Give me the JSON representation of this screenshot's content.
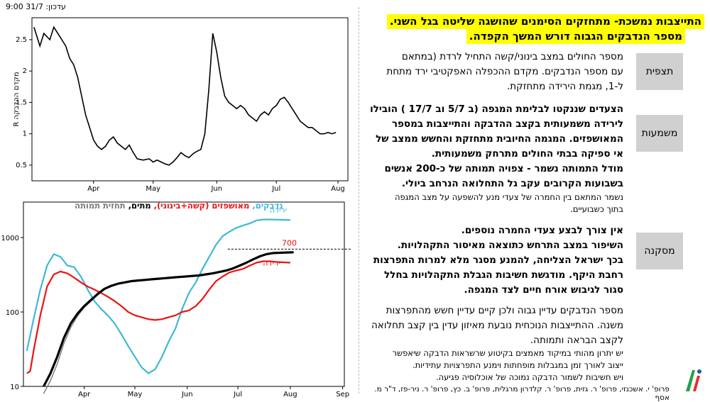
{
  "update_label": "עדכון: 31/7 9:00",
  "headline": {
    "line1": "התייצבות נמשכת- מתחזקים הסימנים שהושגה שליטה בגל השני.",
    "line2": "מספר הנדבקים הגבוה דורש המשך הקפדה."
  },
  "sections": {
    "forecast": {
      "tag": "תצפית",
      "lines": [
        "מספר החולים במצב בינוני/קשה התחיל לרדת (במתאם",
        "עם מספר הנדבקים. מקדם ההכפלה האפקטיבי ירד מתחת",
        "ל-1, מגמת הירידה מתחזקת."
      ]
    },
    "meaning": {
      "tag": "משמעות",
      "lines": [
        "הצעדים שננקטו לבלימת המגפה (ב 5/7 וב 17/7 ) הובילו",
        "לירידה משמעותית בקצב ההדבקה והתייצבות במספר",
        "המאושפזים. המגמה החיובית מתחזקת והחשש ממצב של",
        "אי ספיקה בבתי החולים מתרחק משמעותית.",
        "מודל התמותה נשמר - צפויה תמותה של כ-200 אנשים",
        "בשבועות הקרובים עקב גל התחלואה הנרחב ביולי."
      ],
      "note_lines": [
        "נשמר המתאם בין החמרה של צעדי מנע להשפעה על מצב המגפה",
        "בתוך כשבועיים."
      ]
    },
    "conclusion": {
      "tag": "מסקנה",
      "lines": [
        "אין צורך לבצע צעדי החמרה נוספים.",
        "השיפור במצב התרחש כתוצאה מאיסור התקהלויות.",
        "בכך ישראל הצליחה, להמנע מסגר מלא למרות התפרצות",
        "רחבת היקף. מודגשת חשיבות הגבלת התקהלויות בחלל",
        "סגור לגיבוש אורח חיים לצד המגפה."
      ]
    },
    "extra": {
      "lines": [
        "מספר הנדבקים עדיין גבוה ולכן קיים עדיין חשש מהתפרצות",
        "משנה. ההתייצבות הנוכחית נובעת מאיזון עדין בין קצב תחלואה",
        "לקצב הבראה ותמותה."
      ],
      "note_lines": [
        "יש יתרון מהותי במיקוד מאמצים בקיטוע שרשראות הדבקה שיאפשר",
        "ייצוב לאורך זמן במגבלות מופחתות וימנע התפרצויות עתידיות.",
        "ויש חשיבות לשמור הדבקה נמוכה של אוכלוסיה פגיעה."
      ]
    }
  },
  "footer": "פרופ' י. אשכנזי, פרופ' ר. גזית, פרופ' ר. קלדרון מרגלית, פרופ' ב. כץ, פרופ' ר. ניר-פז, ד\"ר מ. אסף",
  "colors": {
    "highlight": "#ffff00",
    "infected": "#3fb8d8",
    "hospitalized": "#ee1111",
    "deaths": "#000000",
    "mortality_forecast": "#7a7a7a",
    "tag_bg": "#d0d0d0"
  },
  "chart_data": [
    {
      "type": "line",
      "ylabel": "מקדם ההדבקה R",
      "ylim": [
        0.25,
        2.85
      ],
      "yticks": [
        0.5,
        1,
        1.5,
        2,
        2.5
      ],
      "xtick_labels": [
        "Apr",
        "May",
        "Jun",
        "Jul",
        "Aug"
      ],
      "grid": false,
      "series": [
        {
          "x": [
            0,
            3,
            5,
            8,
            10,
            12,
            14,
            16,
            18,
            20,
            22,
            24,
            26,
            28,
            30,
            32,
            34,
            36,
            38,
            40,
            42,
            44,
            46,
            48,
            50,
            52,
            55,
            58,
            60,
            62,
            64,
            66,
            68,
            70,
            72,
            74,
            76,
            78,
            80,
            82,
            84,
            86,
            88,
            90,
            92,
            94,
            96,
            98,
            100,
            102,
            104,
            106,
            108,
            110,
            112,
            114,
            116,
            118,
            120,
            122,
            124,
            126,
            128,
            130,
            132,
            134,
            136,
            138,
            140,
            142,
            144,
            146,
            148,
            150,
            152
          ],
          "y": [
            2.7,
            2.4,
            2.6,
            2.5,
            2.7,
            2.6,
            2.5,
            2.4,
            2.2,
            2.1,
            1.9,
            1.6,
            1.3,
            1.1,
            0.9,
            0.8,
            0.75,
            0.8,
            0.9,
            0.95,
            0.85,
            0.8,
            0.75,
            0.82,
            0.7,
            0.6,
            0.58,
            0.6,
            0.55,
            0.58,
            0.55,
            0.52,
            0.5,
            0.55,
            0.62,
            0.7,
            0.65,
            0.62,
            0.68,
            0.72,
            0.75,
            1.0,
            1.7,
            2.6,
            2.3,
            1.9,
            1.6,
            1.5,
            1.45,
            1.4,
            1.45,
            1.4,
            1.3,
            1.25,
            1.2,
            1.3,
            1.35,
            1.3,
            1.4,
            1.45,
            1.55,
            1.58,
            1.5,
            1.4,
            1.3,
            1.2,
            1.15,
            1.1,
            1.1,
            1.05,
            1.0,
            1.0,
            1.02,
            1.0,
            1.02
          ]
        }
      ]
    },
    {
      "type": "line",
      "log_y": true,
      "ylim": [
        10,
        3000
      ],
      "yticks": [
        10,
        100,
        1000
      ],
      "xtick_labels": [
        "Apr",
        "May",
        "Jun",
        "Jul",
        "Aug",
        "Sep"
      ],
      "legend": [
        {
          "label": "נדבקים",
          "color": "#3fb8d8"
        },
        {
          "label": "מאושפזים (קשה+בינוני)",
          "color": "#ee1111"
        },
        {
          "label": "מתים",
          "color": "#000000"
        },
        {
          "label": "תחזית תמותה",
          "color": "#7a7a7a"
        }
      ],
      "annotations": [
        {
          "text": "ירידה",
          "color": "#3fb8d8"
        },
        {
          "text": "ירידה",
          "color": "#ee1111"
        },
        {
          "text": "700",
          "color": "#ee1111"
        }
      ],
      "reference_value": 700,
      "series": [
        {
          "name": "נדבקים",
          "x": [
            -4,
            0,
            4,
            8,
            12,
            16,
            20,
            24,
            28,
            32,
            36,
            40,
            44,
            48,
            52,
            56,
            60,
            64,
            68,
            72,
            76,
            80,
            84,
            88,
            92,
            96,
            100,
            104,
            108,
            112,
            116,
            120,
            124,
            128,
            132,
            136,
            140,
            144,
            148,
            152
          ],
          "y": [
            30,
            80,
            200,
            420,
            600,
            550,
            420,
            400,
            300,
            200,
            140,
            110,
            90,
            70,
            50,
            35,
            25,
            18,
            15,
            17,
            25,
            40,
            60,
            110,
            180,
            250,
            380,
            550,
            800,
            1050,
            1200,
            1350,
            1450,
            1550,
            1700,
            1750,
            1750,
            1740,
            1730,
            1720
          ]
        },
        {
          "name": "מאושפזים (קשה+בינוני)",
          "x": [
            -4,
            -2,
            0,
            4,
            8,
            12,
            16,
            20,
            24,
            28,
            32,
            36,
            40,
            44,
            48,
            52,
            56,
            60,
            64,
            68,
            72,
            76,
            80,
            84,
            88,
            92,
            96,
            100,
            104,
            108,
            112,
            116,
            120,
            124,
            128,
            132,
            136,
            140,
            144,
            148,
            152
          ],
          "y": [
            15,
            16,
            30,
            90,
            220,
            320,
            350,
            330,
            290,
            250,
            220,
            200,
            180,
            160,
            140,
            120,
            100,
            90,
            85,
            80,
            78,
            80,
            85,
            90,
            100,
            105,
            120,
            150,
            200,
            260,
            300,
            340,
            360,
            380,
            420,
            460,
            480,
            480,
            470,
            465,
            460
          ]
        },
        {
          "name": "מתים",
          "x": [
            6,
            10,
            14,
            18,
            22,
            26,
            30,
            34,
            38,
            42,
            46,
            50,
            54,
            58,
            62,
            66,
            70,
            74,
            78,
            82,
            86,
            90,
            94,
            98,
            102,
            106,
            110,
            114,
            118,
            122,
            126,
            130,
            134,
            138,
            142,
            146,
            150,
            154
          ],
          "y": [
            10,
            15,
            25,
            45,
            70,
            95,
            120,
            145,
            175,
            205,
            225,
            240,
            250,
            260,
            265,
            270,
            275,
            280,
            285,
            290,
            295,
            300,
            305,
            310,
            320,
            330,
            345,
            360,
            385,
            420,
            460,
            510,
            560,
            600,
            620,
            625,
            630,
            635
          ]
        },
        {
          "name": "תחזית תמותה",
          "x": [
            6,
            10,
            14,
            18,
            22,
            26,
            30,
            34,
            38,
            42,
            46,
            50,
            54,
            58,
            62,
            66,
            70,
            74,
            78,
            82,
            86,
            90,
            94,
            98,
            102,
            106,
            110,
            114,
            118,
            122,
            126,
            130,
            134,
            138,
            142,
            146,
            150,
            154
          ],
          "y": [
            8,
            12,
            20,
            38,
            62,
            88,
            115,
            140,
            170,
            200,
            220,
            236,
            246,
            256,
            262,
            268,
            273,
            278,
            283,
            288,
            293,
            298,
            304,
            310,
            318,
            328,
            343,
            358,
            383,
            418,
            458,
            508,
            556,
            598,
            618,
            623,
            628,
            633
          ]
        }
      ]
    }
  ]
}
